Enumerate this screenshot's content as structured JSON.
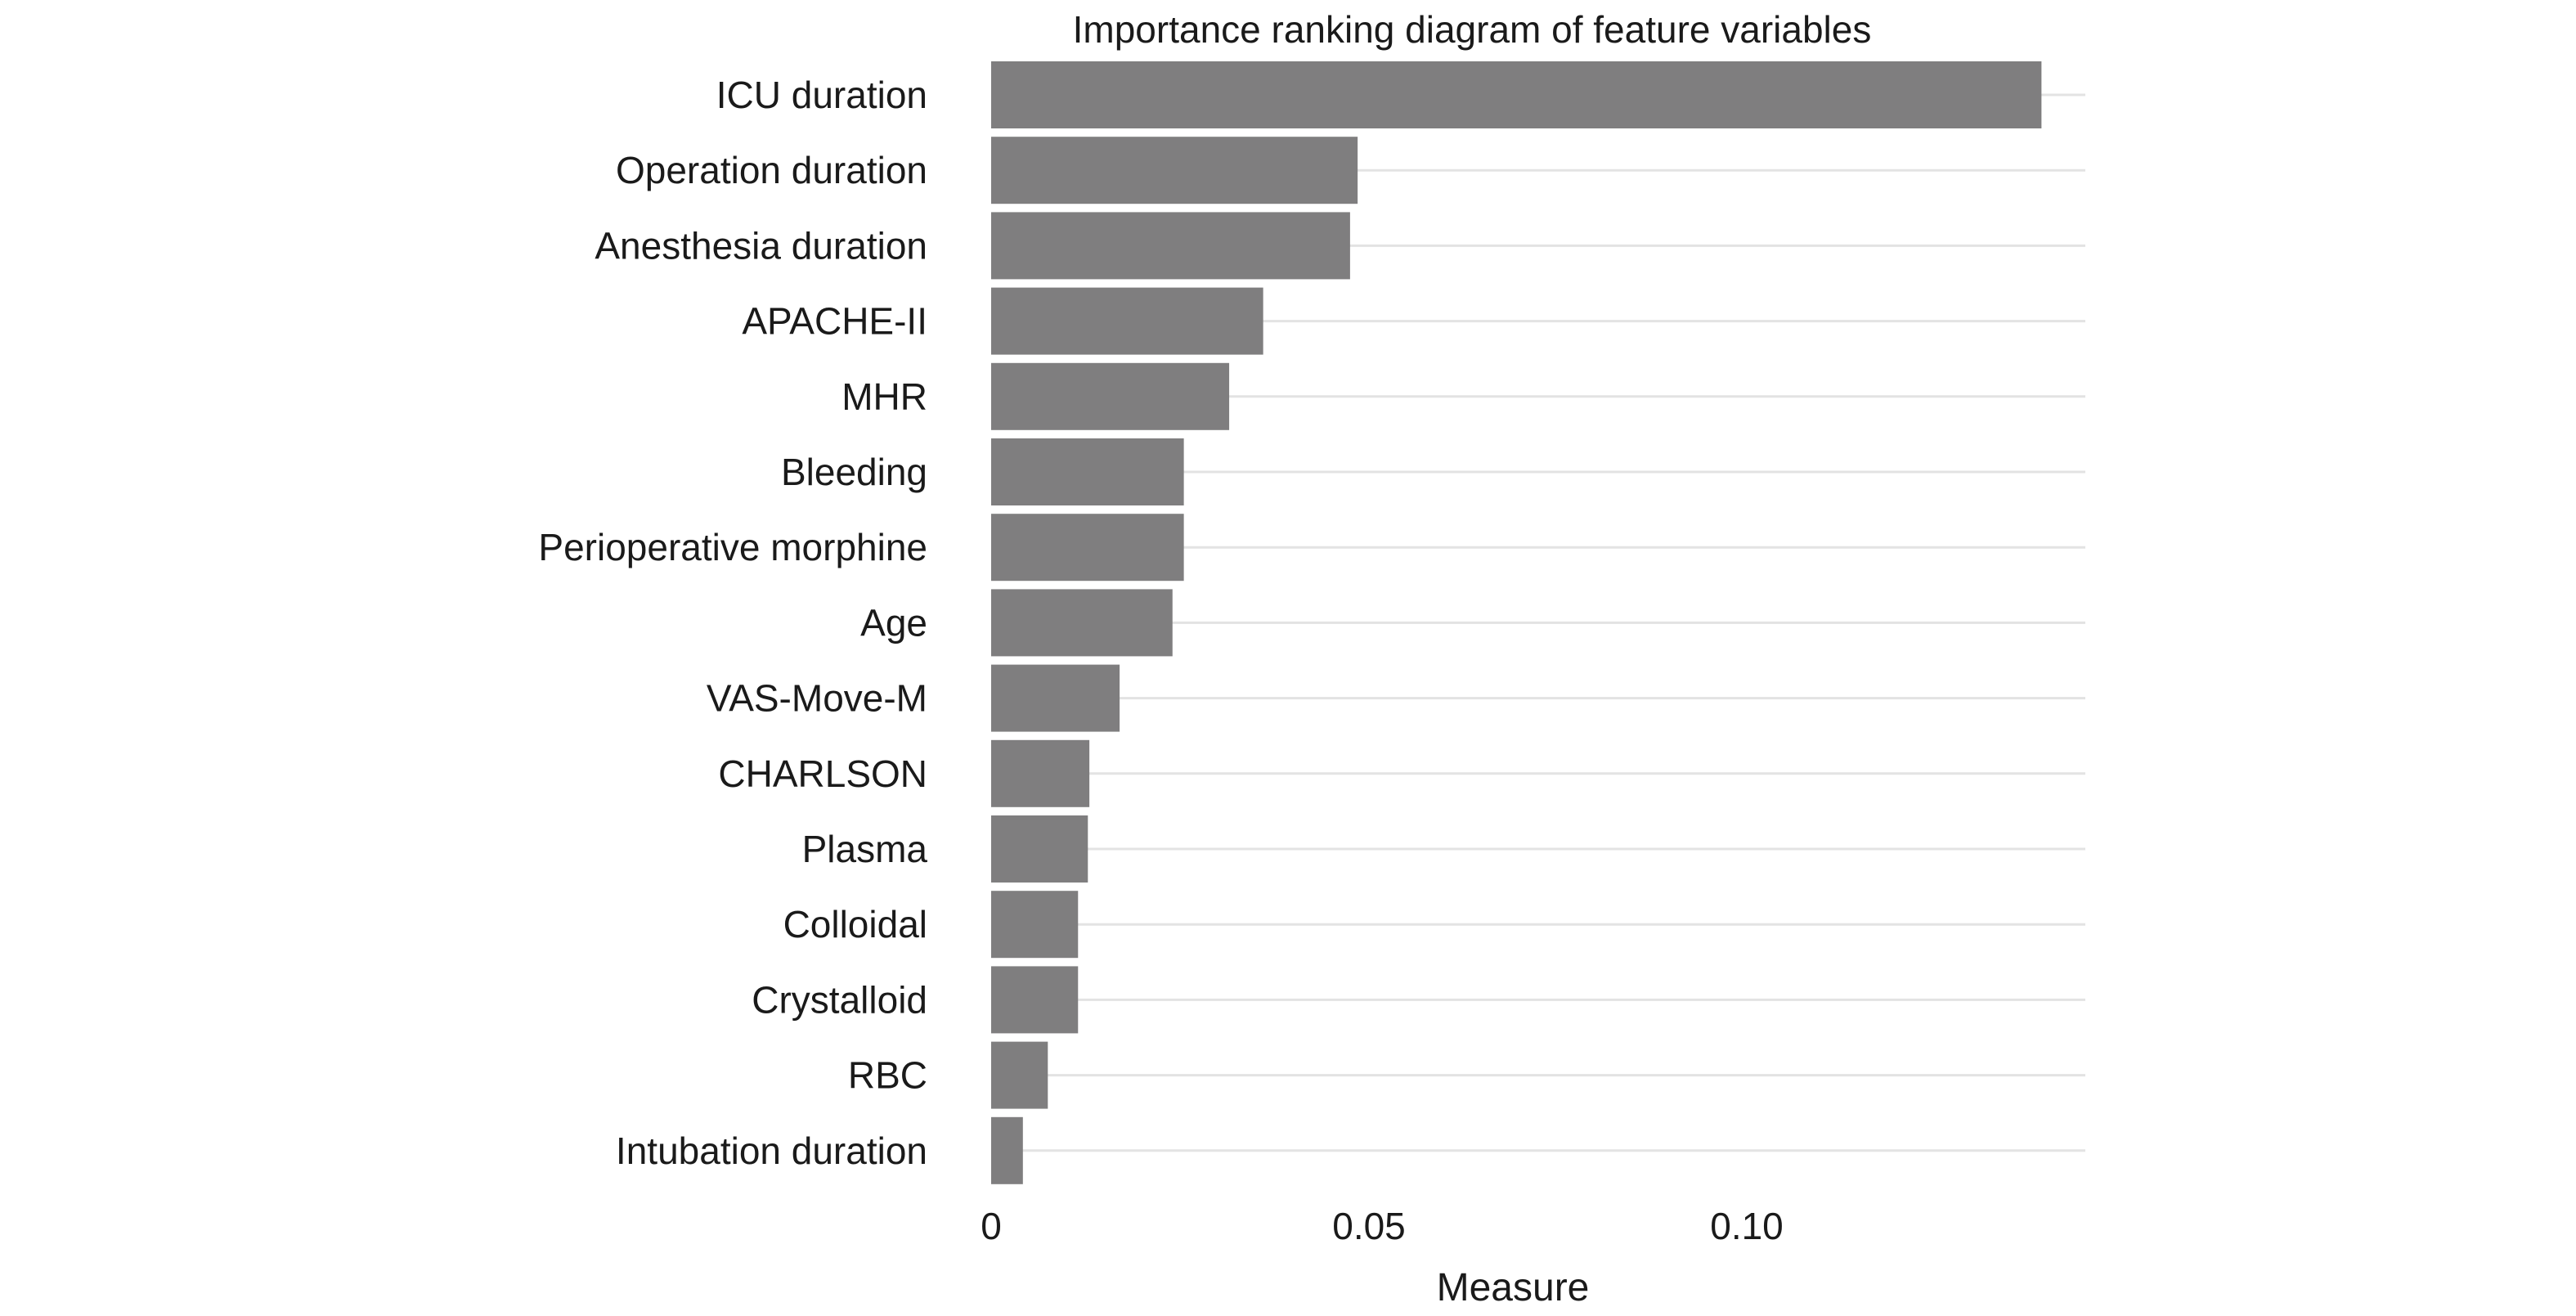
{
  "chart_data": {
    "type": "bar",
    "orientation": "horizontal",
    "title": "Importance ranking diagram of feature variables",
    "xlabel": "Measure",
    "ylabel": "",
    "xlim": [
      0,
      0.145
    ],
    "xticks": [
      0,
      0.05,
      0.1
    ],
    "xtick_labels": [
      "0",
      "0.05",
      "0.10"
    ],
    "grid": "horizontal major lines",
    "legend": "none",
    "bar_color": "#7f7e7f",
    "categories": [
      "ICU duration",
      "Operation duration",
      "Anesthesia duration",
      "APACHE-II",
      "MHR",
      "Bleeding",
      "Perioperative morphine",
      "Age",
      "VAS-Move-M",
      "CHARLSON",
      "Plasma",
      "Colloidal",
      "Crystalloid",
      "RBC",
      "Intubation duration"
    ],
    "values": [
      0.139,
      0.0485,
      0.0475,
      0.036,
      0.0315,
      0.0255,
      0.0255,
      0.024,
      0.017,
      0.013,
      0.0128,
      0.0115,
      0.0115,
      0.0075,
      0.0042
    ]
  }
}
